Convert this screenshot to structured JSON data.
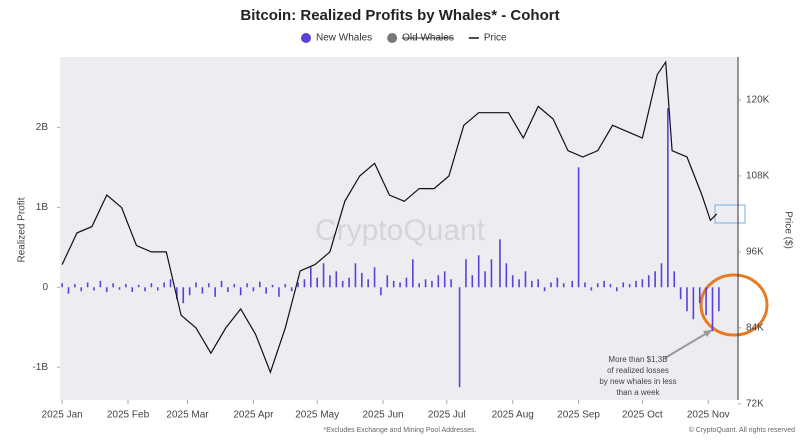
{
  "chart_data": {
    "type": "bar_line",
    "title": "Bitcoin: Realized Profits by Whales* - Cohort",
    "ylabel": "Realized Profit",
    "y2label": "Price ($)",
    "watermark": "CryptoQuant",
    "annotation": "More than $1,3B of realized losses by new whales in less than a week",
    "footnote": "*Excludes Exchange and Mining Pool Addresses.",
    "credit": "© CryptoQuant. All rights reserved",
    "xlim": [
      -1,
      318
    ],
    "xticks": [
      {
        "value": 0,
        "label": "2025 Jan"
      },
      {
        "value": 31,
        "label": "2025 Feb"
      },
      {
        "value": 59,
        "label": "2025 Mar"
      },
      {
        "value": 90,
        "label": "2025 Apr"
      },
      {
        "value": 120,
        "label": "2025 May"
      },
      {
        "value": 151,
        "label": "2025 Jun"
      },
      {
        "value": 181,
        "label": "2025 Jul"
      },
      {
        "value": 212,
        "label": "2025 Aug"
      },
      {
        "value": 243,
        "label": "2025 Sep"
      },
      {
        "value": 273,
        "label": "2025 Oct"
      },
      {
        "value": 304,
        "label": "2025 Nov"
      }
    ],
    "ylim": [
      -1.41,
      2.88
    ],
    "yticks": [
      {
        "value": -1,
        "label": "-1B"
      },
      0,
      {
        "value": 1,
        "label": "1B"
      },
      {
        "value": 2,
        "label": "2B"
      }
    ],
    "y2lim": [
      72600,
      126800
    ],
    "y2ticks": [
      {
        "value": 72000,
        "label": "72K"
      },
      {
        "value": 84000,
        "label": "84K"
      },
      {
        "value": 96000,
        "label": "96K"
      },
      {
        "value": 108000,
        "label": "108K"
      },
      {
        "value": 120000,
        "label": "120K"
      }
    ],
    "series": [
      {
        "name": "New Whales",
        "type": "bar",
        "color": "#5b3fd9",
        "x": [
          0,
          3,
          6,
          9,
          12,
          15,
          18,
          21,
          24,
          27,
          30,
          33,
          36,
          39,
          42,
          45,
          48,
          51,
          54,
          57,
          60,
          63,
          66,
          69,
          72,
          75,
          78,
          81,
          84,
          87,
          90,
          93,
          96,
          99,
          102,
          105,
          108,
          111,
          114,
          117,
          120,
          123,
          126,
          129,
          132,
          135,
          138,
          141,
          144,
          147,
          150,
          153,
          156,
          159,
          162,
          165,
          168,
          171,
          174,
          177,
          180,
          183,
          187,
          190,
          193,
          196,
          199,
          202,
          206,
          209,
          212,
          215,
          218,
          221,
          224,
          227,
          230,
          233,
          236,
          240,
          243,
          246,
          249,
          252,
          255,
          258,
          261,
          264,
          267,
          270,
          273,
          276,
          279,
          282,
          285,
          288,
          291,
          294,
          297,
          300,
          303,
          306,
          309
        ],
        "values": [
          0.05,
          -0.08,
          0.04,
          -0.05,
          0.06,
          -0.04,
          0.08,
          -0.06,
          0.05,
          -0.03,
          0.04,
          -0.06,
          0.03,
          -0.05,
          0.05,
          -0.04,
          0.06,
          0.1,
          -0.15,
          -0.2,
          -0.1,
          0.06,
          -0.08,
          0.05,
          -0.12,
          0.08,
          -0.06,
          0.04,
          -0.1,
          0.05,
          -0.05,
          0.07,
          -0.08,
          0.03,
          -0.12,
          0.04,
          -0.05,
          0.06,
          0.1,
          0.25,
          0.12,
          0.3,
          0.15,
          0.2,
          0.08,
          0.12,
          0.3,
          0.18,
          0.1,
          0.25,
          -0.1,
          0.15,
          0.08,
          0.06,
          0.12,
          0.35,
          0.05,
          0.1,
          0.08,
          0.15,
          0.2,
          0.1,
          -1.25,
          0.35,
          0.15,
          0.4,
          0.2,
          0.35,
          0.6,
          0.3,
          0.15,
          0.1,
          0.2,
          0.08,
          0.1,
          -0.05,
          0.06,
          0.12,
          0.05,
          0.08,
          1.5,
          0.06,
          -0.04,
          0.05,
          0.08,
          0.04,
          -0.05,
          0.06,
          0.04,
          0.08,
          0.1,
          0.15,
          0.2,
          0.3,
          2.24,
          0.2,
          -0.15,
          -0.3,
          -0.4,
          -0.2,
          -0.35,
          -0.55,
          -0.3
        ]
      },
      {
        "name": "Old Whales",
        "type": "bar",
        "color": "#777777",
        "hidden": true
      },
      {
        "name": "Price",
        "type": "line",
        "axis": "y2",
        "color": "#111111",
        "x": [
          0,
          7,
          14,
          21,
          28,
          35,
          42,
          49,
          56,
          63,
          70,
          77,
          84,
          91,
          98,
          105,
          112,
          119,
          126,
          133,
          140,
          147,
          154,
          161,
          168,
          175,
          182,
          189,
          196,
          203,
          210,
          217,
          224,
          231,
          238,
          245,
          252,
          259,
          266,
          273,
          280,
          284,
          287,
          294,
          301,
          305,
          308
        ],
        "values": [
          94000,
          99000,
          100000,
          105000,
          103000,
          97000,
          96000,
          96000,
          86000,
          84000,
          80000,
          84000,
          87000,
          83000,
          77000,
          84000,
          93000,
          94000,
          96000,
          104000,
          108000,
          110000,
          105000,
          104000,
          106000,
          106000,
          108000,
          116000,
          118000,
          118000,
          118000,
          114000,
          119000,
          117000,
          112000,
          111000,
          112000,
          116000,
          115000,
          114000,
          124000,
          126000,
          112000,
          111000,
          105000,
          101000,
          102000
        ]
      }
    ]
  }
}
